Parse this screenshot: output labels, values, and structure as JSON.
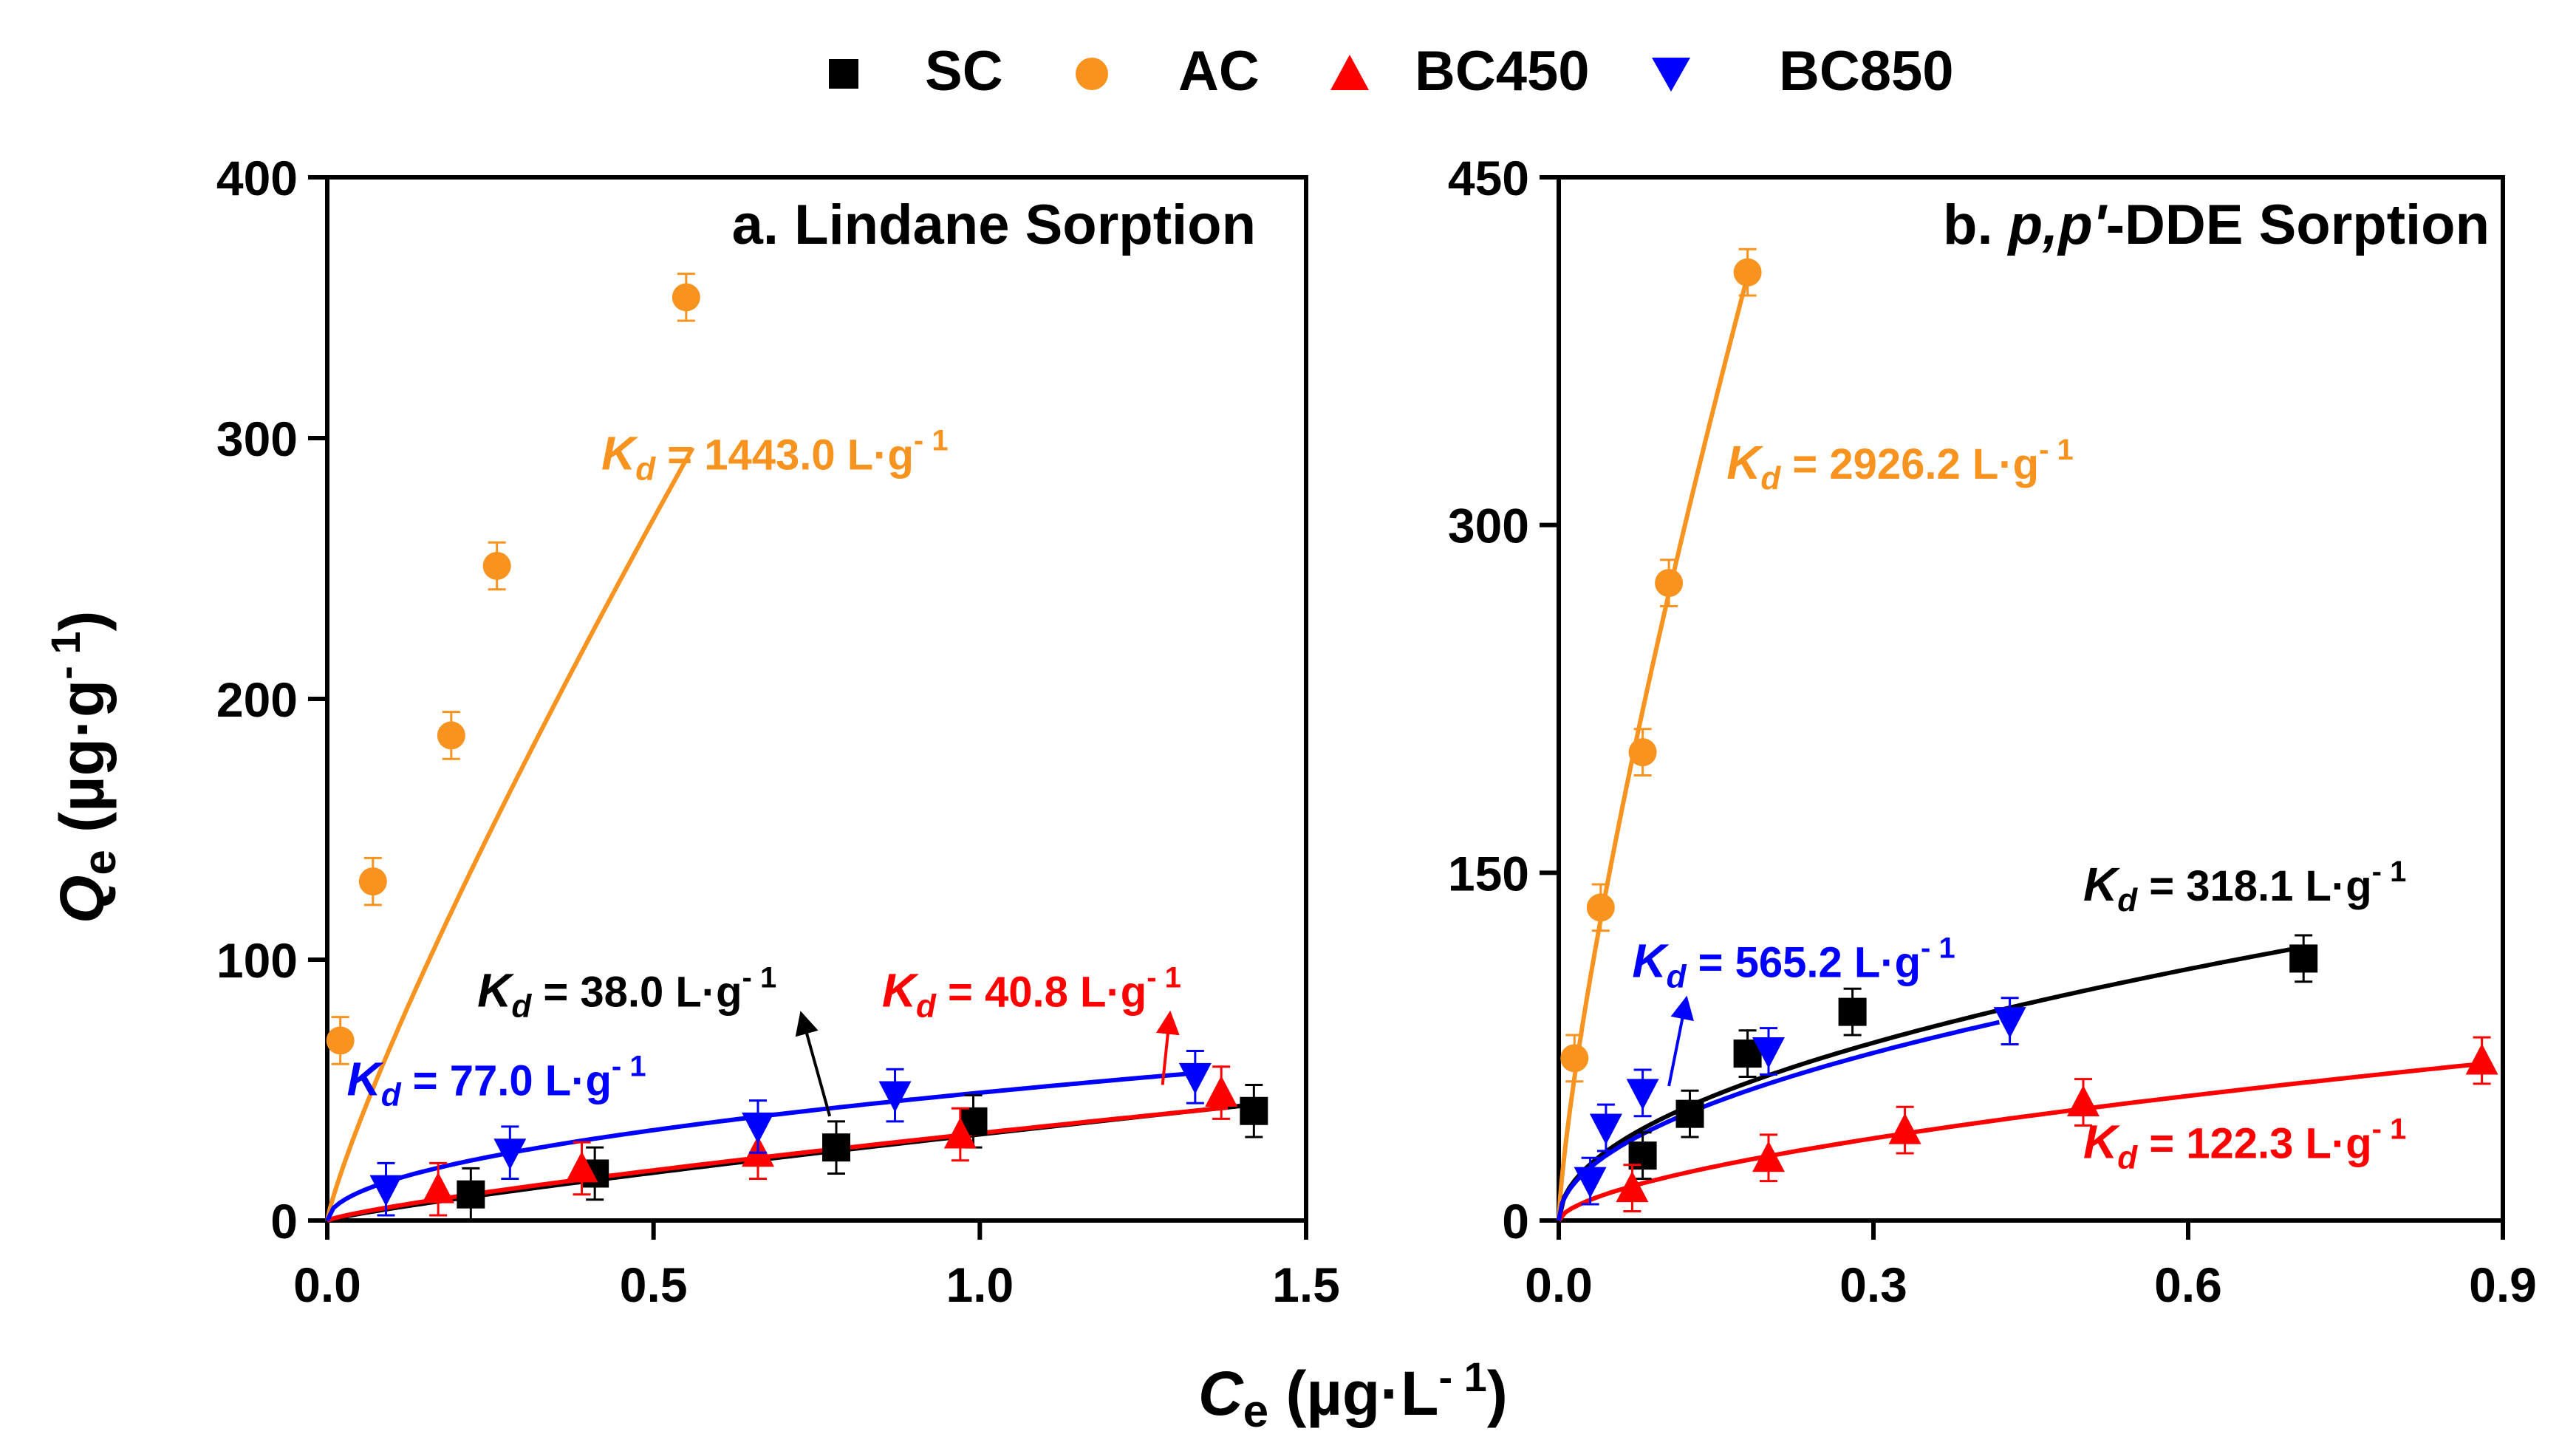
{
  "legend": {
    "items": [
      {
        "label": "SC",
        "marker": "square",
        "color": "#000000"
      },
      {
        "label": "AC",
        "marker": "circle",
        "color": "#f7931e"
      },
      {
        "label": "BC450",
        "marker": "triangle-up",
        "color": "#ff0000"
      },
      {
        "label": "BC850",
        "marker": "triangle-down",
        "color": "#0000ff"
      }
    ]
  },
  "shared": {
    "xlabel_main": "C",
    "xlabel_sub": "e",
    "xlabel_unit": " (µg·L",
    "xlabel_sup": "- 1",
    "xlabel_close": ")",
    "ylabel_main": "Q",
    "ylabel_sub": "e",
    "ylabel_unit": " (µg·g",
    "ylabel_sup": "- 1",
    "ylabel_close": ")",
    "kd_symbol": "K",
    "kd_sub": "d",
    "unit_base": " L·g",
    "unit_sup": "- 1"
  },
  "colors": {
    "SC": "#000000",
    "AC": "#f7931e",
    "BC450": "#ff0000",
    "BC850": "#0000ff"
  },
  "chart_data": [
    {
      "type": "scatter",
      "title_prefix": "a. Lindane Sorption",
      "xlim": [
        0,
        1.5
      ],
      "ylim": [
        0,
        400
      ],
      "xticks": [
        "0.0",
        "0.5",
        "1.0",
        "1.5"
      ],
      "xtick_values": [
        0,
        0.5,
        1.0,
        1.5
      ],
      "yticks": [
        "0",
        "100",
        "200",
        "300",
        "400"
      ],
      "ytick_values": [
        0,
        100,
        200,
        300,
        400
      ],
      "series": [
        {
          "name": "AC",
          "x": [
            0.02,
            0.07,
            0.19,
            0.26,
            0.55
          ],
          "y": [
            69,
            130,
            186,
            251,
            354
          ],
          "err": [
            9,
            9,
            9,
            9,
            9
          ],
          "fit": {
            "k": 485,
            "n": 0.85,
            "xmax": 0.56
          }
        },
        {
          "name": "SC",
          "x": [
            0.22,
            0.41,
            0.78,
            0.99,
            1.42
          ],
          "y": [
            10,
            18,
            28,
            38,
            42
          ],
          "err": [
            10,
            10,
            10,
            10,
            10
          ],
          "fit": {
            "k": 33,
            "n": 0.85,
            "xmax": 1.44
          }
        },
        {
          "name": "BC450",
          "x": [
            0.17,
            0.39,
            0.66,
            0.97,
            1.37
          ],
          "y": [
            12,
            20,
            26,
            33,
            49
          ],
          "err": [
            10,
            10,
            10,
            10,
            10
          ],
          "fit": {
            "k": 33.5,
            "n": 0.8,
            "xmax": 1.38
          }
        },
        {
          "name": "BC850",
          "x": [
            0.09,
            0.28,
            0.66,
            0.87,
            1.33
          ],
          "y": [
            12,
            26,
            36,
            48,
            55
          ],
          "err": [
            10,
            10,
            10,
            10,
            10
          ],
          "fit": {
            "k": 49,
            "n": 0.5,
            "xmax": 1.33
          }
        }
      ],
      "annotations": [
        {
          "series": "AC",
          "value": " = 1443.0",
          "x": 0.42,
          "y": 288
        },
        {
          "series": "SC",
          "value": " = 38.0",
          "x": 0.23,
          "y": 82
        },
        {
          "series": "BC450",
          "value": " = 40.8",
          "x": 0.85,
          "y": 82
        },
        {
          "series": "BC850",
          "value": " = 77.0",
          "x": 0.03,
          "y": 48
        }
      ],
      "arrows": [
        {
          "series": "SC",
          "x1": 0.77,
          "y1": 40,
          "x2": 0.73,
          "y2": 76
        },
        {
          "series": "BC450",
          "x1": 1.28,
          "y1": 52,
          "x2": 1.29,
          "y2": 76
        }
      ]
    },
    {
      "type": "scatter",
      "title_prefix": "b. ",
      "title_italic": "p,p'",
      "title_suffix": "-DDE Sorption",
      "xlim": [
        0,
        0.9
      ],
      "ylim": [
        0,
        450
      ],
      "xticks": [
        "0.0",
        "0.3",
        "0.6",
        "0.9"
      ],
      "xtick_values": [
        0,
        0.3,
        0.6,
        0.9
      ],
      "yticks": [
        "0",
        "150",
        "300",
        "450"
      ],
      "ytick_values": [
        0,
        150,
        300,
        450
      ],
      "series": [
        {
          "name": "AC",
          "x": [
            0.015,
            0.04,
            0.08,
            0.105,
            0.18
          ],
          "y": [
            70,
            135,
            202,
            275,
            409
          ],
          "err": [
            10,
            10,
            10,
            10,
            10
          ],
          "fit": {
            "k": 1500,
            "n": 0.76,
            "xmax": 0.184
          }
        },
        {
          "name": "SC",
          "x": [
            0.08,
            0.125,
            0.18,
            0.28,
            0.71
          ],
          "y": [
            28,
            46,
            72,
            90,
            113
          ],
          "err": [
            10,
            10,
            10,
            10,
            10
          ],
          "fit": {
            "k": 140,
            "n": 0.5,
            "xmax": 0.71
          }
        },
        {
          "name": "BC450",
          "x": [
            0.07,
            0.2,
            0.33,
            0.5,
            0.88
          ],
          "y": [
            14,
            27,
            39,
            51,
            69
          ],
          "err": [
            10,
            10,
            10,
            10,
            10
          ],
          "fit": {
            "k": 73,
            "n": 0.6,
            "xmax": 0.88
          }
        },
        {
          "name": "BC850",
          "x": [
            0.03,
            0.045,
            0.08,
            0.2,
            0.43
          ],
          "y": [
            17,
            40,
            55,
            73,
            86
          ],
          "err": [
            10,
            10,
            10,
            10,
            10
          ],
          "fit": {
            "k": 132,
            "n": 0.5,
            "xmax": 0.42
          }
        }
      ],
      "annotations": [
        {
          "series": "AC",
          "value": " = 2926.2",
          "x": 0.16,
          "y": 320
        },
        {
          "series": "SC",
          "value": " = 318.1",
          "x": 0.5,
          "y": 138
        },
        {
          "series": "BC850",
          "value": " = 565.2",
          "x": 0.07,
          "y": 105
        },
        {
          "series": "BC450",
          "value": " = 122.3",
          "x": 0.5,
          "y": 27
        }
      ],
      "arrows": [
        {
          "series": "BC850",
          "x1": 0.105,
          "y1": 58,
          "x2": 0.12,
          "y2": 92
        }
      ]
    }
  ]
}
